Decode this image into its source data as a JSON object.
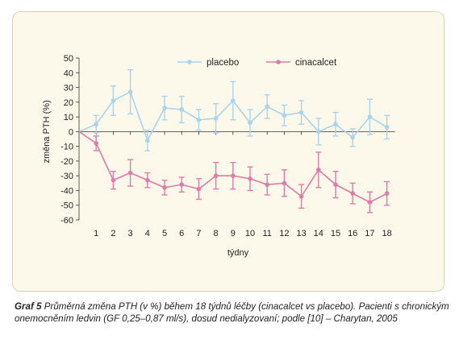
{
  "chart_data": {
    "type": "line",
    "xlabel": "týdny",
    "ylabel": "změna PTH (%)",
    "x": [
      0,
      1,
      2,
      3,
      4,
      5,
      6,
      7,
      8,
      9,
      10,
      11,
      12,
      13,
      14,
      15,
      16,
      17,
      18
    ],
    "x_tick_labels": [
      "1",
      "2",
      "3",
      "4",
      "5",
      "6",
      "7",
      "8",
      "9",
      "10",
      "11",
      "12",
      "13",
      "14",
      "15",
      "16",
      "17",
      "18"
    ],
    "ylim": [
      -60,
      50
    ],
    "y_ticks": [
      50,
      40,
      30,
      20,
      10,
      0,
      -10,
      -20,
      -30,
      -40,
      -50,
      -60
    ],
    "grid": false,
    "legend_position": "top",
    "series": [
      {
        "name": "placebo",
        "color": "#a8d4ee",
        "values": [
          0,
          5,
          21,
          27,
          -6,
          16,
          15,
          8,
          9,
          21,
          6,
          17,
          11,
          13,
          0,
          5,
          -4,
          10,
          3
        ],
        "error": [
          0,
          6,
          10,
          15,
          7,
          8,
          9,
          7,
          10,
          13,
          9,
          8,
          7,
          8,
          9,
          8,
          6,
          12,
          8
        ]
      },
      {
        "name": "cinacalcet",
        "color": "#e07aa6",
        "values": [
          0,
          -8,
          -33,
          -28,
          -33,
          -38,
          -36,
          -39,
          -30,
          -30,
          -32,
          -36,
          -35,
          -44,
          -26,
          -36,
          -42,
          -48,
          -42
        ],
        "error": [
          0,
          5,
          6,
          9,
          5,
          5,
          5,
          7,
          9,
          9,
          8,
          7,
          9,
          8,
          12,
          9,
          7,
          7,
          8
        ]
      }
    ]
  },
  "caption": {
    "label": "Graf 5",
    "text": "Průměrná změna PTH (v %) během 18 týdnů léčby (cinacalcet vs placebo). Pacienti s chronickým onemocněním ledvin (GF 0,25–0,87 ml/s), dosud nedialyzovaní; podle [10] – Charytan, 2005"
  }
}
